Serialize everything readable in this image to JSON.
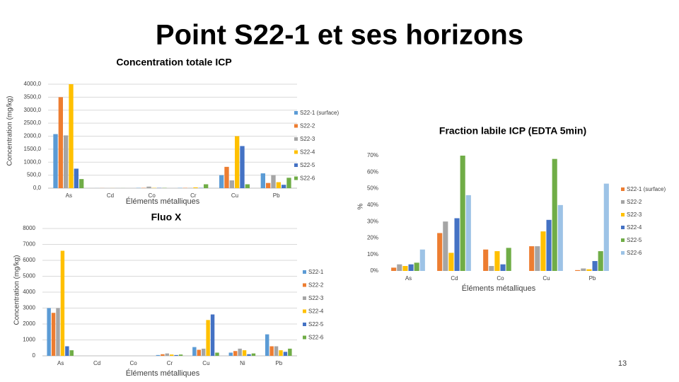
{
  "title": "Point S22-1 et ses horizons",
  "page_number": "13",
  "chart_data": [
    {
      "type": "bar",
      "title": "Concentration totale ICP",
      "ylabel": "Concentration (mg/kg)",
      "xlabel": "Éléments métalliques",
      "categories": [
        "As",
        "Cd",
        "Co",
        "Cr",
        "Cu",
        "Pb"
      ],
      "ylim": [
        0,
        4000
      ],
      "yticks": [
        {
          "value": 0,
          "label": "0,0"
        },
        {
          "value": 500,
          "label": "500,0"
        },
        {
          "value": 1000,
          "label": "1000,0"
        },
        {
          "value": 1500,
          "label": "1500,0"
        },
        {
          "value": 2000,
          "label": "2000,0"
        },
        {
          "value": 2500,
          "label": "2500,0"
        },
        {
          "value": 3000,
          "label": "3000,0"
        },
        {
          "value": 3500,
          "label": "3500,0"
        },
        {
          "value": 4000,
          "label": "4000,0"
        }
      ],
      "grid": true,
      "series": [
        {
          "name": "S22-1 (surface)",
          "color": "#5b9bd5",
          "values": [
            2080,
            2,
            10,
            10,
            500,
            570
          ]
        },
        {
          "name": "S22-2",
          "color": "#ed7d31",
          "values": [
            3500,
            3,
            10,
            10,
            820,
            200
          ]
        },
        {
          "name": "S22-3",
          "color": "#a5a5a5",
          "values": [
            2030,
            1,
            60,
            10,
            300,
            500
          ]
        },
        {
          "name": "S22-4",
          "color": "#ffc000",
          "values": [
            4000,
            2,
            10,
            30,
            2000,
            230
          ]
        },
        {
          "name": "S22-5",
          "color": "#4472c4",
          "values": [
            750,
            1,
            10,
            10,
            1620,
            130
          ]
        },
        {
          "name": "S22-6",
          "color": "#70ad47",
          "values": [
            350,
            2,
            10,
            150,
            150,
            400
          ]
        }
      ]
    },
    {
      "type": "bar",
      "title": "Fluo X",
      "ylabel": "Concentration (mg/kg)",
      "xlabel": "Éléments métalliques",
      "categories": [
        "As",
        "Cd",
        "Co",
        "Cr",
        "Cu",
        "Ni",
        "Pb"
      ],
      "ylim": [
        0,
        8000
      ],
      "yticks": [
        0,
        1000,
        2000,
        3000,
        4000,
        5000,
        6000,
        7000,
        8000
      ],
      "grid": true,
      "series": [
        {
          "name": "S22-1",
          "color": "#5b9bd5",
          "values": [
            3000,
            0,
            0,
            50,
            550,
            200,
            1350
          ]
        },
        {
          "name": "S22-2",
          "color": "#ed7d31",
          "values": [
            2700,
            0,
            0,
            100,
            380,
            300,
            600
          ]
        },
        {
          "name": "S22-3",
          "color": "#a5a5a5",
          "values": [
            3000,
            0,
            0,
            150,
            450,
            450,
            600
          ]
        },
        {
          "name": "S22-4",
          "color": "#ffc000",
          "values": [
            6600,
            0,
            0,
            80,
            2250,
            350,
            350
          ]
        },
        {
          "name": "S22-5",
          "color": "#4472c4",
          "values": [
            600,
            0,
            0,
            50,
            2600,
            100,
            250
          ]
        },
        {
          "name": "S22-6",
          "color": "#70ad47",
          "values": [
            350,
            0,
            0,
            80,
            200,
            150,
            450
          ]
        }
      ]
    },
    {
      "type": "bar",
      "title": "Fraction labile ICP (EDTA 5min)",
      "ylabel": "%",
      "xlabel": "Éléments métalliques",
      "categories": [
        "As",
        "Cd",
        "Co",
        "Cu",
        "Pb"
      ],
      "ylim": [
        0,
        70
      ],
      "yticks": [
        {
          "value": 0,
          "label": "0%"
        },
        {
          "value": 10,
          "label": "10%"
        },
        {
          "value": 20,
          "label": "20%"
        },
        {
          "value": 30,
          "label": "30%"
        },
        {
          "value": 40,
          "label": "40%"
        },
        {
          "value": 50,
          "label": "50%"
        },
        {
          "value": 60,
          "label": "60%"
        },
        {
          "value": 70,
          "label": "70%"
        }
      ],
      "grid": false,
      "series": [
        {
          "name": "S22-1 (surface)",
          "color": "#ed7d31",
          "values": [
            2,
            23,
            13,
            15,
            0.5
          ]
        },
        {
          "name": "S22-2",
          "color": "#a5a5a5",
          "values": [
            4,
            30,
            3,
            15,
            1.5
          ]
        },
        {
          "name": "S22-3",
          "color": "#ffc000",
          "values": [
            3,
            11,
            12,
            24,
            1
          ]
        },
        {
          "name": "S22-4",
          "color": "#4472c4",
          "values": [
            4,
            32,
            4,
            31,
            6
          ]
        },
        {
          "name": "S22-5",
          "color": "#70ad47",
          "values": [
            5,
            70,
            14,
            68,
            12
          ]
        },
        {
          "name": "S22-6",
          "color": "#9dc3e6",
          "values": [
            13,
            46,
            0,
            40,
            53
          ]
        }
      ]
    }
  ]
}
